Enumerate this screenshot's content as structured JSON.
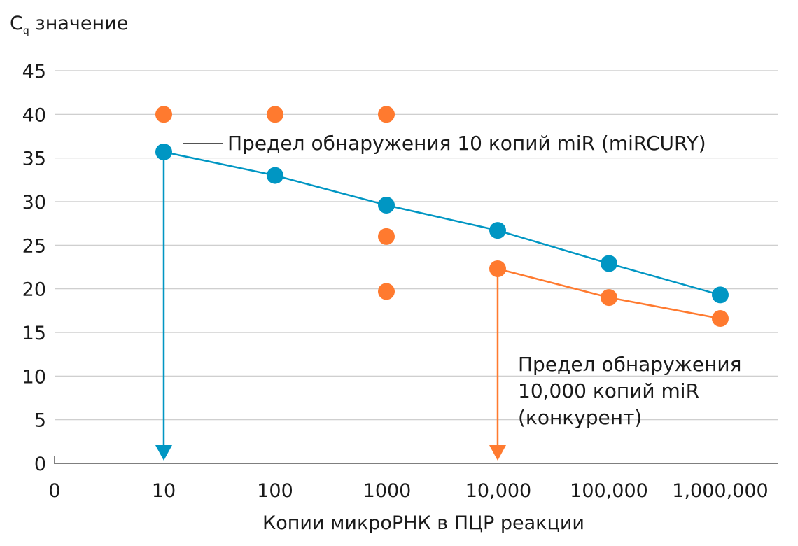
{
  "chart_data": {
    "type": "scatter",
    "ylabel_letter": "C",
    "ylabel_sub": "q",
    "ylabel_rest": " значение",
    "xlabel": "Копии микроРНК в ПЦР реакции",
    "x_tick_labels": [
      "0",
      "10",
      "100",
      "1000",
      "10,000",
      "100,000",
      "1,000,000"
    ],
    "y_ticks": [
      0,
      5,
      10,
      15,
      20,
      25,
      30,
      35,
      40,
      45
    ],
    "ylim": [
      0,
      45
    ],
    "x_scale": "log",
    "grid": "horizontal",
    "colors": {
      "miRCURY": "#0096c3",
      "competitor": "#ff7a2f",
      "grid": "#c8c8c8",
      "axis": "#555555"
    },
    "series": [
      {
        "key": "miRCURY",
        "points": [
          {
            "x": 10,
            "y": 35.7
          },
          {
            "x": 100,
            "y": 33.0
          },
          {
            "x": 1000,
            "y": 29.6
          },
          {
            "x": 10000,
            "y": 26.7
          },
          {
            "x": 100000,
            "y": 22.9
          },
          {
            "x": 1000000,
            "y": 19.3
          }
        ],
        "fit_line": true
      },
      {
        "key": "competitor",
        "points": [
          {
            "x": 10,
            "y": 40
          },
          {
            "x": 100,
            "y": 40
          },
          {
            "x": 1000,
            "y": 40
          },
          {
            "x": 1000,
            "y": 26.0
          },
          {
            "x": 1000,
            "y": 19.7
          },
          {
            "x": 10000,
            "y": 22.3
          },
          {
            "x": 100000,
            "y": 19.0
          },
          {
            "x": 1000000,
            "y": 16.6
          }
        ],
        "fit_line_from_x": 10000
      }
    ],
    "annotations": [
      {
        "key": "miRCURY",
        "text": [
          "Предел обнаружения 10 копий miR (miRCURY)"
        ],
        "arrow_x": 10
      },
      {
        "key": "competitor",
        "text": [
          "Предел обнаружения",
          "10,000 копий miR",
          "(конкурент)"
        ],
        "arrow_x": 10000
      }
    ]
  }
}
